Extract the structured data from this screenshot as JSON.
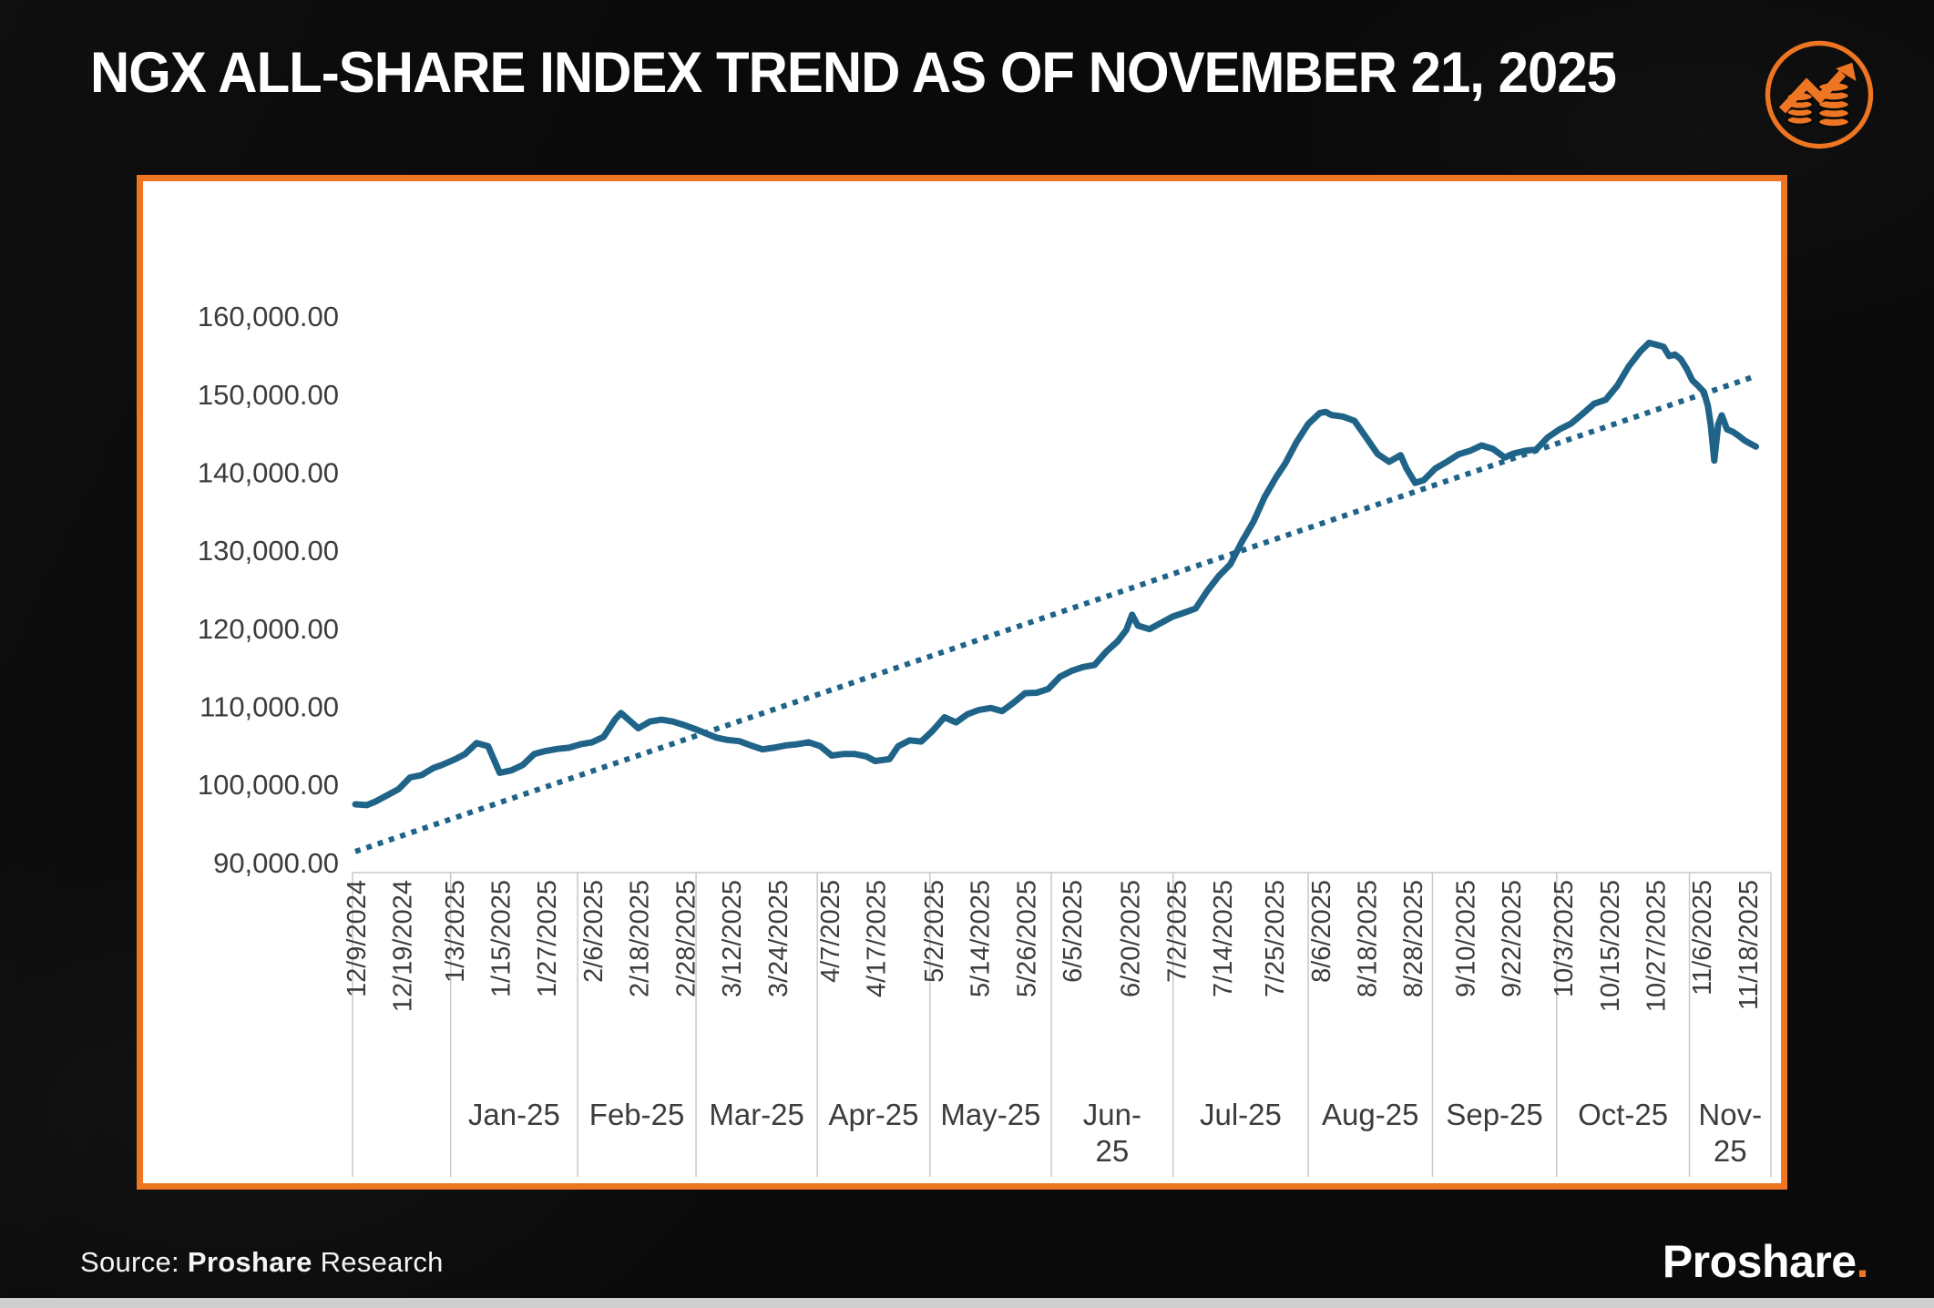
{
  "page": {
    "title": "NGX ALL-SHARE INDEX TREND AS OF NOVEMBER 21, 2025"
  },
  "footer": {
    "source_prefix": "Source: ",
    "source_brand": "Proshare",
    "source_suffix": " Research",
    "logo_text": "Proshare",
    "logo_dot": "."
  },
  "colors": {
    "accent_orange": "#EE7623",
    "line_blue": "#1F6488",
    "panel_bg": "#FFFFFF",
    "page_bg": "#0A0A0A",
    "axis_text": "#3C3C3C",
    "grid_line": "#C8C8C8",
    "bottom_strip": "#CFCFCF"
  },
  "icon": {
    "name": "growth-chart-coins-icon"
  },
  "chart_data": {
    "type": "line",
    "title": "NGX All-Share Index trend, 12/9/2024 - 11/21/2025",
    "xlabel": "",
    "ylabel": "",
    "grid": "off",
    "legend": "none",
    "y_axis": {
      "tick_values": [
        160000,
        150000,
        140000,
        130000,
        120000,
        110000,
        100000,
        90000
      ],
      "tick_labels": [
        "160,000.00",
        "150,000.00",
        "140,000.00",
        "130,000.00",
        "120,000.00",
        "110,000.00",
        "100,000.00",
        "90,000.00"
      ],
      "plot_value_range": [
        88700,
        171350
      ]
    },
    "x_axis": {
      "unit": "trading-day index from 12/9/2024",
      "total_days": 245.1,
      "tick_days": [
        0,
        8,
        17,
        25,
        33,
        41,
        49,
        57,
        65,
        73,
        82,
        90,
        100,
        108,
        116,
        124,
        134,
        142,
        150,
        159,
        167,
        175,
        183,
        192,
        200,
        209,
        217,
        225,
        233,
        241
      ],
      "tick_labels": [
        "12/9/2024",
        "12/19/2024",
        "1/3/2025",
        "1/15/2025",
        "1/27/2025",
        "2/6/2025",
        "2/18/2025",
        "2/28/2025",
        "3/12/2025",
        "3/24/2025",
        "4/7/2025",
        "4/17/2025",
        "5/2/2025",
        "5/14/2025",
        "5/26/2025",
        "6/5/2025",
        "6/20/2025",
        "7/2/2025",
        "7/14/2025",
        "7/25/2025",
        "8/6/2025",
        "8/18/2025",
        "8/28/2025",
        "9/10/2025",
        "9/22/2025",
        "10/3/2025",
        "10/15/2025",
        "10/27/2025",
        "11/6/2025",
        "11/18/2025"
      ],
      "month_cells": [
        {
          "label": "",
          "start_day": 0,
          "wrap": false
        },
        {
          "label": "Jan-25",
          "start_day": 16.5,
          "wrap": false
        },
        {
          "label": "Feb-25",
          "start_day": 38.5,
          "wrap": false
        },
        {
          "label": "Mar-25",
          "start_day": 59,
          "wrap": false
        },
        {
          "label": "Apr-25",
          "start_day": 80,
          "wrap": false
        },
        {
          "label": "May-25",
          "start_day": 99.5,
          "wrap": false
        },
        {
          "label": "Jun-25",
          "start_day": 120.5,
          "wrap": true
        },
        {
          "label": "Jul-25",
          "start_day": 141.6,
          "wrap": false
        },
        {
          "label": "Aug-25",
          "start_day": 165,
          "wrap": false
        },
        {
          "label": "Sep-25",
          "start_day": 186.5,
          "wrap": false
        },
        {
          "label": "Oct-25",
          "start_day": 208,
          "wrap": false
        },
        {
          "label": "Nov-25",
          "start_day": 231,
          "wrap": true
        }
      ]
    },
    "series": [
      {
        "name": "NGX All-Share Index",
        "style": "solid",
        "points": [
          [
            0,
            97450
          ],
          [
            2,
            97350
          ],
          [
            3.5,
            97800
          ],
          [
            5.5,
            98600
          ],
          [
            7.5,
            99400
          ],
          [
            9.5,
            100900
          ],
          [
            11.5,
            101200
          ],
          [
            13.5,
            102100
          ],
          [
            15,
            102500
          ],
          [
            17.5,
            103300
          ],
          [
            19,
            103900
          ],
          [
            21,
            105300
          ],
          [
            23,
            104900
          ],
          [
            25,
            101500
          ],
          [
            27,
            101800
          ],
          [
            29,
            102500
          ],
          [
            31,
            103900
          ],
          [
            33,
            104300
          ],
          [
            35,
            104550
          ],
          [
            37,
            104700
          ],
          [
            39,
            105150
          ],
          [
            41,
            105400
          ],
          [
            43,
            106100
          ],
          [
            45,
            108350
          ],
          [
            46,
            109150
          ],
          [
            49,
            107200
          ],
          [
            51,
            108050
          ],
          [
            53,
            108300
          ],
          [
            55,
            108050
          ],
          [
            57,
            107600
          ],
          [
            59,
            107050
          ],
          [
            61,
            106450
          ],
          [
            62.5,
            106000
          ],
          [
            64.5,
            105700
          ],
          [
            66.5,
            105550
          ],
          [
            68.5,
            105000
          ],
          [
            70.5,
            104500
          ],
          [
            72.5,
            104700
          ],
          [
            74.5,
            105000
          ],
          [
            76.5,
            105150
          ],
          [
            78.5,
            105400
          ],
          [
            80.5,
            104900
          ],
          [
            82.5,
            103700
          ],
          [
            84.5,
            103900
          ],
          [
            86.5,
            103900
          ],
          [
            88.5,
            103600
          ],
          [
            90,
            103000
          ],
          [
            92.5,
            103250
          ],
          [
            94,
            104900
          ],
          [
            96,
            105650
          ],
          [
            98,
            105500
          ],
          [
            100,
            106900
          ],
          [
            102,
            108600
          ],
          [
            104,
            107950
          ],
          [
            106,
            109000
          ],
          [
            108,
            109550
          ],
          [
            110,
            109800
          ],
          [
            112,
            109400
          ],
          [
            114,
            110500
          ],
          [
            116,
            111700
          ],
          [
            118,
            111750
          ],
          [
            120,
            112250
          ],
          [
            122,
            113800
          ],
          [
            124,
            114550
          ],
          [
            126,
            115050
          ],
          [
            128,
            115300
          ],
          [
            130,
            117000
          ],
          [
            132,
            118350
          ],
          [
            133.5,
            119800
          ],
          [
            134.5,
            121750
          ],
          [
            135.5,
            120350
          ],
          [
            137.5,
            119900
          ],
          [
            139.5,
            120700
          ],
          [
            141.5,
            121500
          ],
          [
            143.5,
            122000
          ],
          [
            145.5,
            122550
          ],
          [
            147.5,
            124800
          ],
          [
            149.5,
            126700
          ],
          [
            151.5,
            128200
          ],
          [
            153.5,
            131100
          ],
          [
            155.5,
            133650
          ],
          [
            157.5,
            136900
          ],
          [
            159.5,
            139450
          ],
          [
            161,
            141100
          ],
          [
            163,
            143900
          ],
          [
            165,
            146200
          ],
          [
            167,
            147600
          ],
          [
            168,
            147750
          ],
          [
            169,
            147350
          ],
          [
            171,
            147150
          ],
          [
            173,
            146600
          ],
          [
            175,
            144500
          ],
          [
            177,
            142350
          ],
          [
            179,
            141350
          ],
          [
            181,
            142200
          ],
          [
            182,
            140500
          ],
          [
            183.5,
            138650
          ],
          [
            185,
            139000
          ],
          [
            187,
            140500
          ],
          [
            189,
            141350
          ],
          [
            191,
            142300
          ],
          [
            193,
            142750
          ],
          [
            195,
            143450
          ],
          [
            197,
            143000
          ],
          [
            199,
            141900
          ],
          [
            200.5,
            142400
          ],
          [
            202.5,
            142750
          ],
          [
            204.5,
            142950
          ],
          [
            206.5,
            144500
          ],
          [
            208.5,
            145500
          ],
          [
            210.5,
            146250
          ],
          [
            212.5,
            147500
          ],
          [
            214.5,
            148800
          ],
          [
            216.5,
            149300
          ],
          [
            218.5,
            151100
          ],
          [
            220.5,
            153600
          ],
          [
            222.5,
            155500
          ],
          [
            224,
            156600
          ],
          [
            225.5,
            156300
          ],
          [
            226.5,
            156100
          ],
          [
            227.5,
            154900
          ],
          [
            228.5,
            155100
          ],
          [
            229.5,
            154500
          ],
          [
            230.5,
            153300
          ],
          [
            231.5,
            151800
          ],
          [
            232.5,
            151100
          ],
          [
            233.5,
            150300
          ],
          [
            234.2,
            148500
          ],
          [
            234.7,
            146000
          ],
          [
            235.3,
            141500
          ],
          [
            236,
            146200
          ],
          [
            236.6,
            147300
          ],
          [
            237.5,
            145500
          ],
          [
            238.5,
            145200
          ],
          [
            239.5,
            144700
          ],
          [
            240.5,
            144100
          ],
          [
            241.5,
            143700
          ],
          [
            242.5,
            143300
          ]
        ]
      },
      {
        "name": "Linear trend",
        "style": "dotted",
        "points": [
          [
            0,
            91400
          ],
          [
            242.5,
            152350
          ]
        ]
      }
    ]
  }
}
